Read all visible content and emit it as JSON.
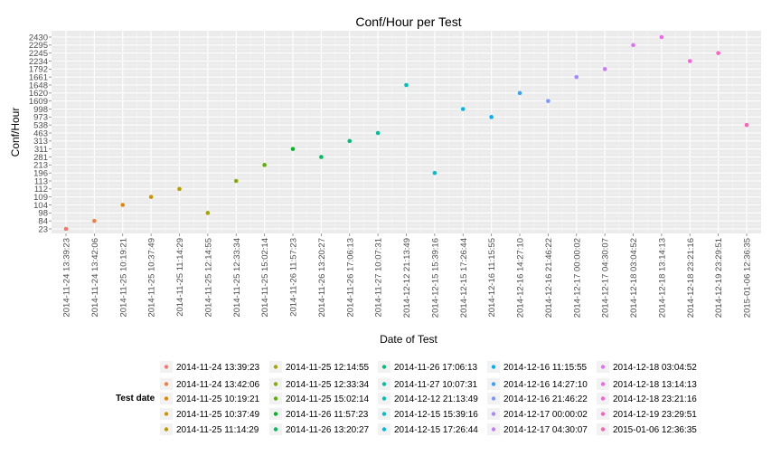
{
  "chart_data": {
    "type": "scatter",
    "title": "Conf/Hour per Test",
    "xlabel": "Date of Test",
    "ylabel": "Conf/Hour",
    "x": [
      "2014-11-24 13:39:23",
      "2014-11-24 13:42:06",
      "2014-11-25 10:19:21",
      "2014-11-25 10:37:49",
      "2014-11-25 11:14:29",
      "2014-11-25 12:14:55",
      "2014-11-25 12:33:34",
      "2014-11-25 15:02:14",
      "2014-11-26 11:57:23",
      "2014-11-26 13:20:27",
      "2014-11-26 17:06:13",
      "2014-11-27 10:07:31",
      "2014-12-12 21:13:49",
      "2014-12-15 15:39:16",
      "2014-12-15 17:26:44",
      "2014-12-16 11:15:55",
      "2014-12-16 14:27:10",
      "2014-12-16 21:46:22",
      "2014-12-17 00:00:02",
      "2014-12-17 04:30:07",
      "2014-12-18 03:04:52",
      "2014-12-18 13:14:13",
      "2014-12-18 23:21:16",
      "2014-12-19 23:29:51",
      "2015-01-06 12:36:35"
    ],
    "y_ticks": [
      "23",
      "84",
      "98",
      "104",
      "109",
      "112",
      "113",
      "196",
      "213",
      "281",
      "311",
      "313",
      "463",
      "538",
      "973",
      "998",
      "1609",
      "1620",
      "1648",
      "1661",
      "1792",
      "2234",
      "2245",
      "2295",
      "2430"
    ],
    "y": [
      "23",
      "84",
      "104",
      "109",
      "112",
      "98",
      "113",
      "213",
      "311",
      "281",
      "313",
      "463",
      "1648",
      "196",
      "998",
      "973",
      "1620",
      "1609",
      "1661",
      "1792",
      "2295",
      "2430",
      "2234",
      "2245",
      "538"
    ],
    "colors": [
      "#F8766D",
      "#EE8043",
      "#E38900",
      "#D09400",
      "#BB9D00",
      "#A3A500",
      "#85AD00",
      "#5BB300",
      "#00B81F",
      "#00BC59",
      "#00BF7D",
      "#00C19C",
      "#00C0B7",
      "#00BDD0",
      "#00B8E5",
      "#00B0F6",
      "#35A2FF",
      "#7F96FF",
      "#A58AFF",
      "#C77CFF",
      "#DE70F9",
      "#EF67EB",
      "#FA62DB",
      "#FF61C7",
      "#FF62B0"
    ],
    "legend": {
      "title": "Test date",
      "placement": "bottom",
      "columns": 5
    },
    "grid": true
  }
}
